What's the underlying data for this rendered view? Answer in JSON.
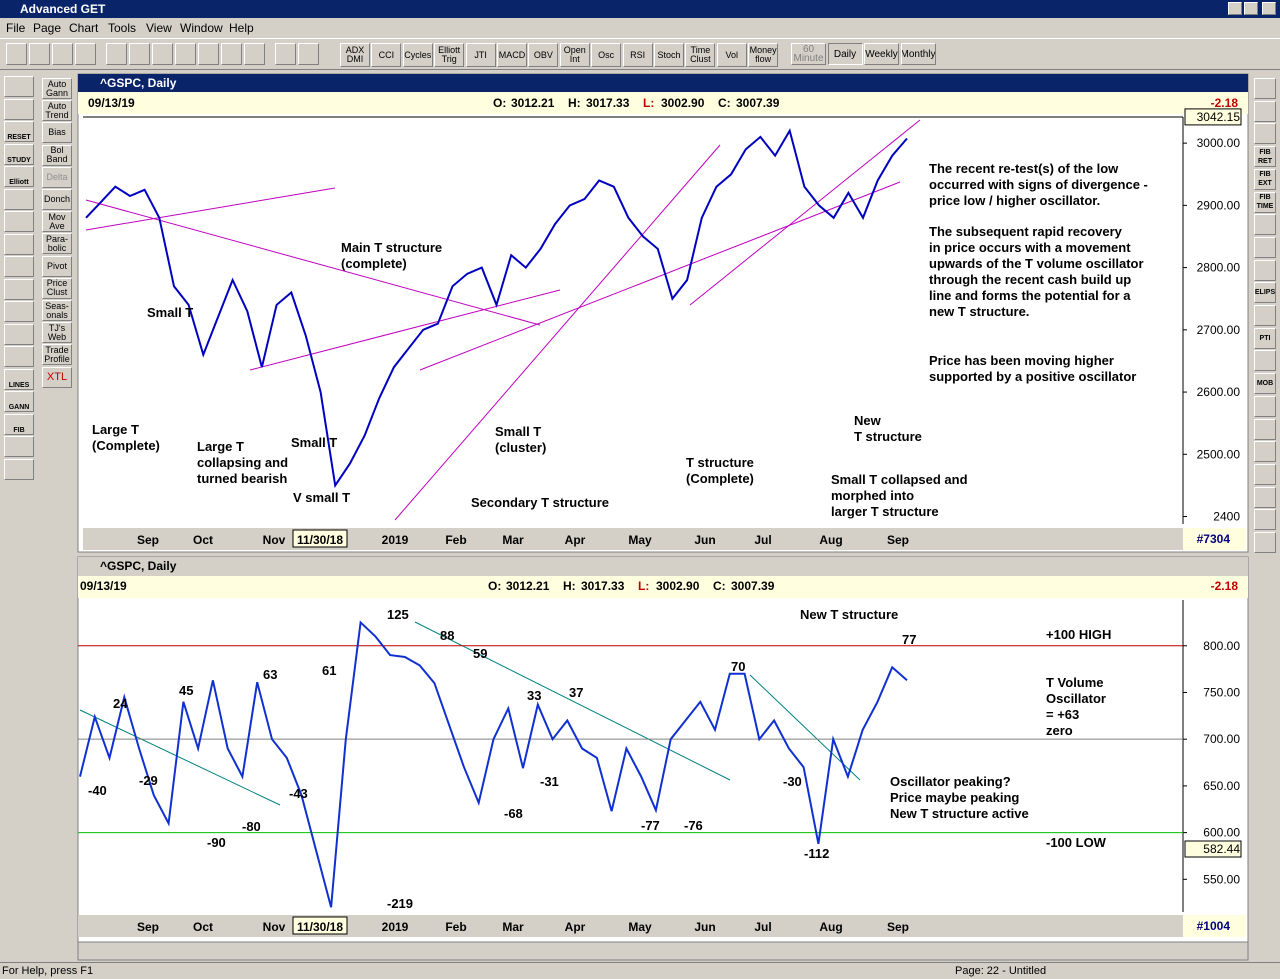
{
  "window_title": "Advanced GET",
  "menu": [
    "File",
    "Page",
    "Chart",
    "Tools",
    "View",
    "Window",
    "Help"
  ],
  "toolbar": [
    "ADX DMI",
    "CCI",
    "Cycles",
    "Elliott Trig",
    "JTI",
    "MACD",
    "OBV",
    "Open Int",
    "Osc",
    "RSI",
    "Stoch",
    "Time Clust",
    "Vol",
    "Money flow"
  ],
  "timeframes": [
    "60 Minute",
    "Daily",
    "Weekly",
    "Monthly"
  ],
  "left_panel": [
    "Auto Gann",
    "Auto Trend",
    "Bias",
    "Bol Band",
    "Delta",
    "Donch",
    "Mov Ave",
    "Para-bolic",
    "Pivot",
    "Price Clust",
    "Seas-onals",
    "TJ's Web",
    "Trade Profile",
    "XTL"
  ],
  "left_icons": [
    "RESET",
    "STUDY",
    "Elliott",
    "LINES",
    "GANN",
    "FIB"
  ],
  "right_icons": [
    "FIB RET",
    "FIB EXT",
    "FIB TIME",
    "ELIPS",
    "PTI",
    "MOB"
  ],
  "charts": [
    {
      "type": "line",
      "title": "^GSPC, Daily",
      "date": "09/13/19",
      "ohlc": [
        {
          "label": "O:",
          "value": "3012.21"
        },
        {
          "label": "H:",
          "value": "3017.33"
        },
        {
          "label": "L:",
          "value": "3002.90"
        },
        {
          "label": "C:",
          "value": "3007.39"
        }
      ],
      "change": "-2.18",
      "bar_count": "#7304",
      "color": "#0000c0",
      "values": [
        2880,
        2905,
        2930,
        2915,
        2925,
        2880,
        2770,
        2740,
        2660,
        2720,
        2780,
        2730,
        2640,
        2740,
        2760,
        2690,
        2600,
        2450,
        2485,
        2530,
        2590,
        2640,
        2670,
        2700,
        2710,
        2770,
        2790,
        2800,
        2740,
        2820,
        2800,
        2830,
        2870,
        2900,
        2910,
        2940,
        2930,
        2880,
        2850,
        2830,
        2750,
        2780,
        2880,
        2930,
        2950,
        2990,
        3010,
        2980,
        3020,
        2930,
        2900,
        2880,
        2920,
        2880,
        2940,
        2980,
        3007.39
      ],
      "ylim": [
        2388,
        3042
      ],
      "yticks": [
        {
          "value": 2400,
          "label": "2400"
        },
        {
          "value": 2500,
          "label": "2500.00"
        },
        {
          "value": 2600,
          "label": "2600.00"
        },
        {
          "value": 2700,
          "label": "2700.00"
        },
        {
          "value": 2800,
          "label": "2800.00"
        },
        {
          "value": 2900,
          "label": "2900.00"
        },
        {
          "value": 3000,
          "label": "3000.00"
        }
      ],
      "marker": {
        "value": 3042.15,
        "label": "3042.15"
      },
      "months": [
        "Sep",
        "Oct",
        "Nov",
        "11/30/18",
        "2019",
        "Feb",
        "Mar",
        "Apr",
        "May",
        "Jun",
        "Jul",
        "Aug",
        "Sep"
      ],
      "annotations": [
        [
          "Small T"
        ],
        [
          "Large T",
          "(Complete)"
        ],
        [
          "Large T",
          "collapsing and",
          "turned bearish"
        ],
        [
          "Small T"
        ],
        [
          "V small T"
        ],
        [
          "Main T structure",
          "(complete)"
        ],
        [
          "Small T",
          "(cluster)"
        ],
        [
          "Secondary T structure"
        ],
        [
          "T structure",
          "(Complete)"
        ],
        [
          "New",
          "T structure"
        ],
        [
          "Small T collapsed and",
          "morphed into",
          "larger T structure"
        ],
        [
          "The recent re-test(s) of the low",
          "occurred with signs of divergence -",
          "price low / higher oscillator."
        ],
        [
          "The subsequent rapid recovery",
          "in price occurs with a movement",
          "upwards of the T volume oscillator",
          "through the recent cash build up",
          "line and forms the potential for a",
          "new T structure."
        ],
        [
          "Price has been moving higher",
          "supported by a positive oscillator"
        ]
      ]
    },
    {
      "type": "line",
      "title": "^GSPC, Daily",
      "date": "09/13/19",
      "ohlc": [
        {
          "label": "O:",
          "value": "3012.21"
        },
        {
          "label": "H:",
          "value": "3017.33"
        },
        {
          "label": "L:",
          "value": "3002.90"
        },
        {
          "label": "C:",
          "value": "3007.39"
        }
      ],
      "change": "-2.18",
      "bar_count": "#1004",
      "color": "#1030d0",
      "values": [
        660,
        724,
        680,
        745,
        690,
        640,
        610,
        740,
        690,
        763,
        690,
        660,
        761,
        700,
        680,
        640,
        580,
        520,
        700,
        825,
        810,
        790,
        788,
        779,
        760,
        715,
        670,
        632,
        700,
        733,
        669,
        737,
        700,
        720,
        690,
        680,
        623,
        690,
        660,
        624,
        700,
        720,
        740,
        710,
        770,
        770,
        700,
        720,
        690,
        670,
        588,
        700,
        660,
        710,
        740,
        777,
        763
      ],
      "ylim": [
        515,
        849
      ],
      "yticks": [
        {
          "value": 550,
          "label": "550.00"
        },
        {
          "value": 600,
          "label": "600.00"
        },
        {
          "value": 650,
          "label": "650.00"
        },
        {
          "value": 700,
          "label": "700.00"
        },
        {
          "value": 750,
          "label": "750.00"
        },
        {
          "value": 800,
          "label": "800.00"
        }
      ],
      "marker": {
        "value": 582.44,
        "label": "582.44"
      },
      "reference_lines": [
        {
          "value": 800,
          "color": "#c00000"
        },
        {
          "value": 700,
          "color": "#808080"
        },
        {
          "value": 600,
          "color": "#00c000"
        }
      ],
      "months": [
        "Sep",
        "Oct",
        "Nov",
        "11/30/18",
        "2019",
        "Feb",
        "Mar",
        "Apr",
        "May",
        "Jun",
        "Jul",
        "Aug",
        "Sep"
      ],
      "annotations": [
        [
          "-40"
        ],
        [
          "24"
        ],
        [
          "-29"
        ],
        [
          "45"
        ],
        [
          "-90"
        ],
        [
          "-80"
        ],
        [
          "63"
        ],
        [
          "-43"
        ],
        [
          "61"
        ],
        [
          "-219"
        ],
        [
          "125"
        ],
        [
          "88"
        ],
        [
          "59"
        ],
        [
          "33"
        ],
        [
          "-68"
        ],
        [
          "37"
        ],
        [
          "-31"
        ],
        [
          "-77"
        ],
        [
          "-76"
        ],
        [
          "70"
        ],
        [
          "-30"
        ],
        [
          "-112"
        ],
        [
          "77"
        ],
        [
          "New T structure"
        ],
        [
          "+100 HIGH"
        ],
        [
          "T Volume",
          "Oscillator",
          "= +63",
          "zero"
        ],
        [
          "-100 LOW"
        ],
        [
          "Oscillator peaking?",
          "Price maybe peaking",
          "New T structure active"
        ]
      ]
    }
  ],
  "status": {
    "left": "For Help, press F1",
    "right": "Page: 22 - Untitled"
  }
}
